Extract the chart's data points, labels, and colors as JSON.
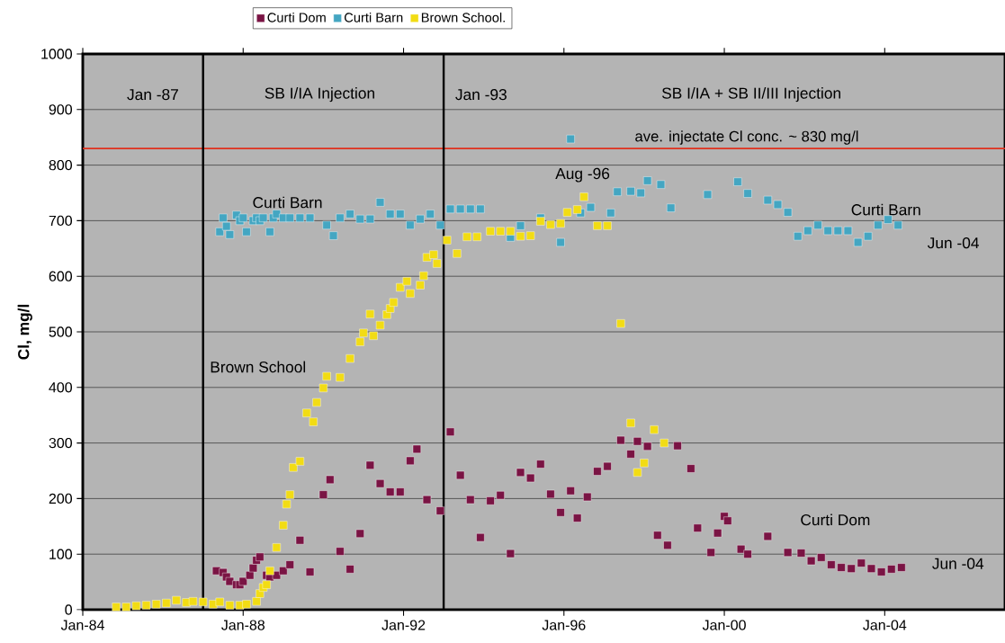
{
  "chart_data": {
    "type": "scatter",
    "ylabel": "Cl, mg/l",
    "xlim": [
      "1984-01",
      "2007-01"
    ],
    "xticks": [
      {
        "value": "1984-01",
        "label": "Jan-84"
      },
      {
        "value": "1988-01",
        "label": "Jan-88"
      },
      {
        "value": "1992-01",
        "label": "Jan-92"
      },
      {
        "value": "1996-01",
        "label": "Jan-96"
      },
      {
        "value": "2000-01",
        "label": "Jan-00"
      },
      {
        "value": "2004-01",
        "label": "Jan-04"
      }
    ],
    "ylim": [
      0,
      1000
    ],
    "yticks": [
      0,
      100,
      200,
      300,
      400,
      500,
      600,
      700,
      800,
      900,
      1000
    ],
    "grid": "y",
    "legend": "top",
    "marker": "square",
    "series": [
      {
        "name": "Curti Dom",
        "color": "#7a1444",
        "x": [
          "1987-05",
          "1987-07",
          "1987-08",
          "1987-09",
          "1987-11",
          "1987-12",
          "1988-01",
          "1988-03",
          "1988-04",
          "1988-05",
          "1988-06",
          "1988-08",
          "1988-09",
          "1988-11",
          "1989-01",
          "1989-03",
          "1989-06",
          "1989-09",
          "1990-01",
          "1990-03",
          "1990-06",
          "1990-09",
          "1990-12",
          "1991-03",
          "1991-06",
          "1991-09",
          "1991-12",
          "1992-03",
          "1992-05",
          "1992-08",
          "1992-12",
          "1993-03",
          "1993-06",
          "1993-09",
          "1993-12",
          "1994-03",
          "1994-06",
          "1994-09",
          "1994-12",
          "1995-03",
          "1995-06",
          "1995-09",
          "1995-12",
          "1996-03",
          "1996-05",
          "1996-08",
          "1996-11",
          "1997-02",
          "1997-06",
          "1997-09",
          "1997-11",
          "1998-02",
          "1998-05",
          "1998-08",
          "1998-11",
          "1999-03",
          "1999-05",
          "1999-09",
          "1999-11",
          "2000-01",
          "2000-02",
          "2000-06",
          "2000-08",
          "2001-02",
          "2001-08",
          "2001-12",
          "2002-03",
          "2002-06",
          "2002-09",
          "2002-12",
          "2003-03",
          "2003-06",
          "2003-09",
          "2003-12",
          "2004-03",
          "2004-06"
        ],
        "values": [
          70,
          67,
          59,
          51,
          45,
          45,
          51,
          62,
          75,
          89,
          95,
          62,
          59,
          62,
          70,
          81,
          125,
          68,
          207,
          234,
          105,
          73,
          137,
          260,
          227,
          212,
          212,
          268,
          289,
          198,
          178,
          320,
          242,
          198,
          130,
          196,
          206,
          101,
          247,
          237,
          262,
          208,
          175,
          214,
          165,
          203,
          249,
          258,
          305,
          280,
          303,
          294,
          134,
          116,
          295,
          254,
          147,
          103,
          138,
          168,
          160,
          109,
          100,
          132,
          103,
          102,
          88,
          94,
          81,
          76,
          74,
          84,
          74,
          68,
          73,
          76
        ]
      },
      {
        "name": "Curti Barn",
        "color": "#44a6c2",
        "x": [
          "1987-06",
          "1987-07",
          "1987-08",
          "1987-09",
          "1987-11",
          "1987-12",
          "1988-01",
          "1988-02",
          "1988-04",
          "1988-05",
          "1988-06",
          "1988-07",
          "1988-09",
          "1988-10",
          "1988-11",
          "1989-01",
          "1989-03",
          "1989-06",
          "1989-09",
          "1990-02",
          "1990-04",
          "1990-06",
          "1990-09",
          "1990-12",
          "1991-03",
          "1991-06",
          "1991-09",
          "1991-12",
          "1992-03",
          "1992-06",
          "1992-09",
          "1992-12",
          "1993-03",
          "1993-06",
          "1993-09",
          "1993-12",
          "1994-09",
          "1994-12",
          "1995-06",
          "1995-12",
          "1996-03",
          "1996-06",
          "1996-09",
          "1997-03",
          "1997-05",
          "1997-09",
          "1997-12",
          "1998-02",
          "1998-06",
          "1998-09",
          "1999-08",
          "2000-05",
          "2000-08",
          "2001-02",
          "2001-05",
          "2001-08",
          "2001-11",
          "2002-02",
          "2002-05",
          "2002-08",
          "2002-11",
          "2003-02",
          "2003-05",
          "2003-08",
          "2003-11",
          "2004-02",
          "2004-05"
        ],
        "values": [
          680,
          705,
          690,
          675,
          710,
          700,
          705,
          680,
          700,
          705,
          700,
          705,
          680,
          705,
          712,
          705,
          705,
          705,
          705,
          692,
          673,
          705,
          712,
          703,
          703,
          733,
          712,
          712,
          692,
          703,
          712,
          692,
          721,
          721,
          721,
          721,
          670,
          691,
          705,
          661,
          847,
          714,
          724,
          714,
          752,
          753,
          750,
          772,
          765,
          723,
          747,
          770,
          749,
          737,
          729,
          715,
          672,
          682,
          692,
          682,
          682,
          682,
          661,
          672,
          692,
          702,
          692
        ]
      },
      {
        "name": "Brown School.",
        "color": "#f2dc14",
        "x": [
          "1984-11",
          "1985-02",
          "1985-05",
          "1985-08",
          "1985-11",
          "1986-02",
          "1986-05",
          "1986-08",
          "1986-10",
          "1987-01",
          "1987-04",
          "1987-06",
          "1987-09",
          "1987-12",
          "1988-02",
          "1988-05",
          "1988-06",
          "1988-07",
          "1988-08",
          "1988-09",
          "1988-11",
          "1989-01",
          "1989-02",
          "1989-03",
          "1989-04",
          "1989-06",
          "1989-08",
          "1989-10",
          "1989-11",
          "1990-01",
          "1990-02",
          "1990-06",
          "1990-09",
          "1990-12",
          "1991-01",
          "1991-03",
          "1991-04",
          "1991-06",
          "1991-08",
          "1991-09",
          "1991-10",
          "1991-12",
          "1992-02",
          "1992-03",
          "1992-06",
          "1992-07",
          "1992-08",
          "1992-10",
          "1992-11",
          "1993-02",
          "1993-05",
          "1993-08",
          "1993-11",
          "1994-03",
          "1994-06",
          "1994-09",
          "1994-12",
          "1995-03",
          "1995-06",
          "1995-09",
          "1995-12",
          "1996-02",
          "1996-05",
          "1996-07",
          "1996-11",
          "1997-02",
          "1997-06",
          "1997-09",
          "1997-11",
          "1998-01",
          "1998-04",
          "1998-07"
        ],
        "values": [
          5,
          5,
          7,
          8,
          10,
          12,
          17,
          13,
          15,
          14,
          10,
          14,
          8,
          8,
          10,
          15,
          29,
          40,
          45,
          70,
          112,
          152,
          190,
          207,
          256,
          267,
          354,
          338,
          373,
          399,
          420,
          418,
          452,
          482,
          498,
          532,
          493,
          512,
          531,
          542,
          553,
          580,
          591,
          569,
          584,
          601,
          634,
          639,
          623,
          665,
          641,
          671,
          671,
          681,
          681,
          681,
          672,
          673,
          699,
          693,
          695,
          715,
          720,
          743,
          691,
          691,
          515,
          336,
          247,
          264,
          324,
          300
        ]
      }
    ],
    "ref_lines": [
      {
        "axis": "y",
        "value": 830,
        "label": "ave.  injectate Cl conc.  ~ 830 mg/l",
        "color": "#e0301c"
      },
      {
        "axis": "x",
        "value": "1987-01",
        "color": "#000000"
      },
      {
        "axis": "x",
        "value": "1993-01",
        "color": "#000000"
      }
    ],
    "annotations": [
      "Jan -87",
      "SB I/IA  Injection",
      "Jan -93",
      "SB I/IA  +  SB II/III  Injection",
      "Curti  Barn",
      "Aug -96",
      "Curti  Barn",
      "Jun -04",
      "Brown  School",
      "Curti  Dom",
      "Jun -04"
    ]
  }
}
